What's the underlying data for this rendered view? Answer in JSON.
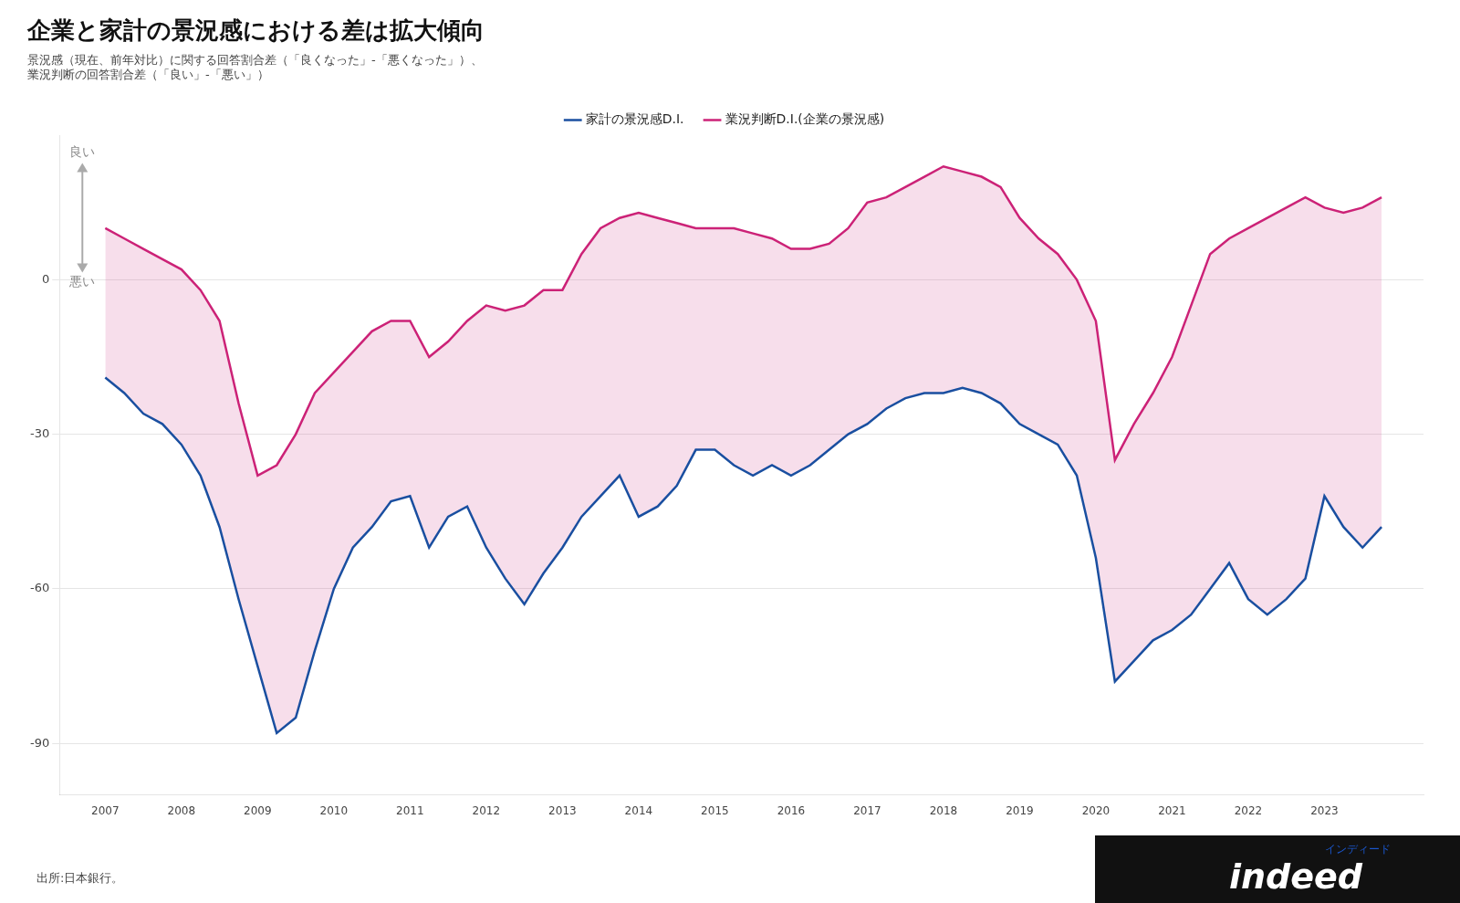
{
  "chart_data": {
    "type": "line",
    "title": "企業と家計の景況感における差は拡大傾向",
    "subtitle": [
      "景況感（現在、前年対比）に関する回答割合差（「良くなった」-「悪くなった」）、",
      "業況判断の回答割合差（「良い」-「悪い」）"
    ],
    "annotations": [
      "良い",
      "悪い",
      "出所:日本銀行。",
      "インディード",
      "indeed"
    ],
    "x": [
      2007.0,
      2007.25,
      2007.5,
      2007.75,
      2008.0,
      2008.25,
      2008.5,
      2008.75,
      2009.0,
      2009.25,
      2009.5,
      2009.75,
      2010.0,
      2010.25,
      2010.5,
      2010.75,
      2011.0,
      2011.25,
      2011.5,
      2011.75,
      2012.0,
      2012.25,
      2012.5,
      2012.75,
      2013.0,
      2013.25,
      2013.5,
      2013.75,
      2014.0,
      2014.25,
      2014.5,
      2014.75,
      2015.0,
      2015.25,
      2015.5,
      2015.75,
      2016.0,
      2016.25,
      2016.5,
      2016.75,
      2017.0,
      2017.25,
      2017.5,
      2017.75,
      2018.0,
      2018.25,
      2018.5,
      2018.75,
      2019.0,
      2019.25,
      2019.5,
      2019.75,
      2020.0,
      2020.25,
      2020.5,
      2020.75,
      2021.0,
      2021.25,
      2021.5,
      2021.75,
      2022.0,
      2022.25,
      2022.5,
      2022.75,
      2023.0,
      2023.25,
      2023.5,
      2023.75
    ],
    "series": [
      {
        "name": "家計の景況感D.I.",
        "color": "#1a4fa0",
        "marker": "none",
        "values": [
          -19,
          -22,
          -26,
          -28,
          -32,
          -38,
          -48,
          -62,
          -75,
          -88,
          -85,
          -72,
          -60,
          -52,
          -48,
          -43,
          -42,
          -52,
          -46,
          -44,
          -52,
          -58,
          -63,
          -57,
          -52,
          -46,
          -42,
          -38,
          -46,
          -44,
          -40,
          -33,
          -33,
          -36,
          -38,
          -36,
          -38,
          -36,
          -33,
          -30,
          -28,
          -25,
          -23,
          -22,
          -22,
          -21,
          -22,
          -24,
          -28,
          -30,
          -32,
          -38,
          -54,
          -78,
          -74,
          -70,
          -68,
          -65,
          -60,
          -55,
          -62,
          -65,
          -62,
          -58,
          -42,
          -48,
          -52,
          -48
        ]
      },
      {
        "name": "業況判断D.I.(企業の景況感)",
        "color": "#cc2277",
        "marker": "none",
        "values": [
          10,
          8,
          6,
          4,
          2,
          -2,
          -8,
          -24,
          -38,
          -36,
          -30,
          -22,
          -18,
          -14,
          -10,
          -8,
          -8,
          -15,
          -12,
          -8,
          -5,
          -6,
          -5,
          -2,
          -2,
          5,
          10,
          12,
          13,
          12,
          11,
          10,
          10,
          10,
          9,
          8,
          6,
          6,
          7,
          10,
          15,
          16,
          18,
          20,
          22,
          21,
          20,
          18,
          12,
          8,
          5,
          0,
          -8,
          -35,
          -28,
          -22,
          -15,
          -5,
          5,
          8,
          10,
          12,
          14,
          16,
          14,
          13,
          14,
          16
        ]
      }
    ],
    "xlim": [
      2006.4,
      2024.3
    ],
    "xticks": [
      2007,
      2008,
      2009,
      2010,
      2011,
      2012,
      2013,
      2014,
      2015,
      2016,
      2017,
      2018,
      2019,
      2020,
      2021,
      2022,
      2023
    ],
    "ylim": [
      -100,
      28
    ],
    "yticks": [
      -90,
      -60,
      -30,
      0
    ],
    "grid": "y",
    "legend": "top"
  }
}
